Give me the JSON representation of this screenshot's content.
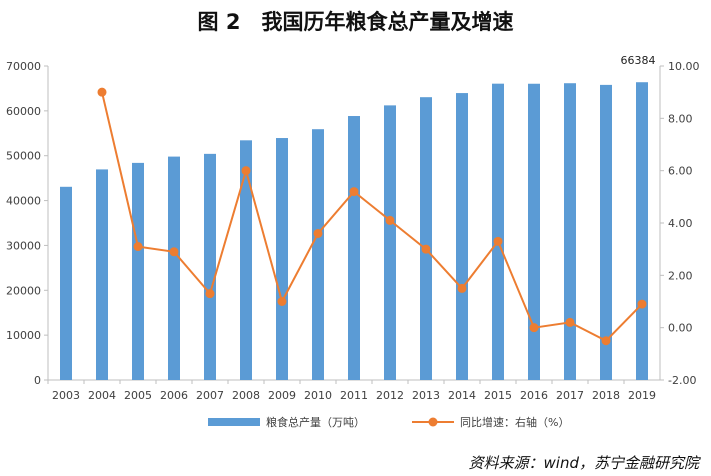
{
  "title": "图 2　我国历年粮食总产量及增速",
  "source": "资料来源：wind，苏宁金融研究院",
  "colors": {
    "bar": "#5B9BD5",
    "line": "#ED7D31",
    "axis": "#BFBFBF",
    "text": "#404040"
  },
  "chart_data": {
    "type": "bar",
    "categories": [
      "2003",
      "2004",
      "2005",
      "2006",
      "2007",
      "2008",
      "2009",
      "2010",
      "2011",
      "2012",
      "2013",
      "2014",
      "2015",
      "2016",
      "2017",
      "2018",
      "2019"
    ],
    "series": [
      {
        "name": "粮食总产量（万吨）",
        "type": "bar",
        "axis": "left",
        "values": [
          43070,
          46947,
          48402,
          49804,
          50414,
          53434,
          53941,
          55911,
          58849,
          61223,
          63048,
          63965,
          66060,
          66044,
          66161,
          65789,
          66384
        ]
      },
      {
        "name": "同比增速：右轴（%）",
        "type": "line",
        "axis": "right",
        "values": [
          null,
          9.0,
          3.1,
          2.9,
          1.3,
          6.0,
          1.0,
          3.6,
          5.2,
          4.1,
          3.0,
          1.5,
          3.3,
          0.0,
          0.2,
          -0.5,
          0.9
        ]
      }
    ],
    "left_axis": {
      "min": 0,
      "max": 70000,
      "ticks": [
        "0",
        "10000",
        "20000",
        "30000",
        "40000",
        "50000",
        "60000",
        "70000"
      ]
    },
    "right_axis": {
      "min": -2,
      "max": 10,
      "ticks": [
        "-2.00",
        "0.00",
        "2.00",
        "4.00",
        "6.00",
        "8.00",
        "10.00"
      ]
    },
    "annotation": {
      "category": "2019",
      "text": "66384"
    },
    "legend_position": "bottom",
    "grid": false
  }
}
